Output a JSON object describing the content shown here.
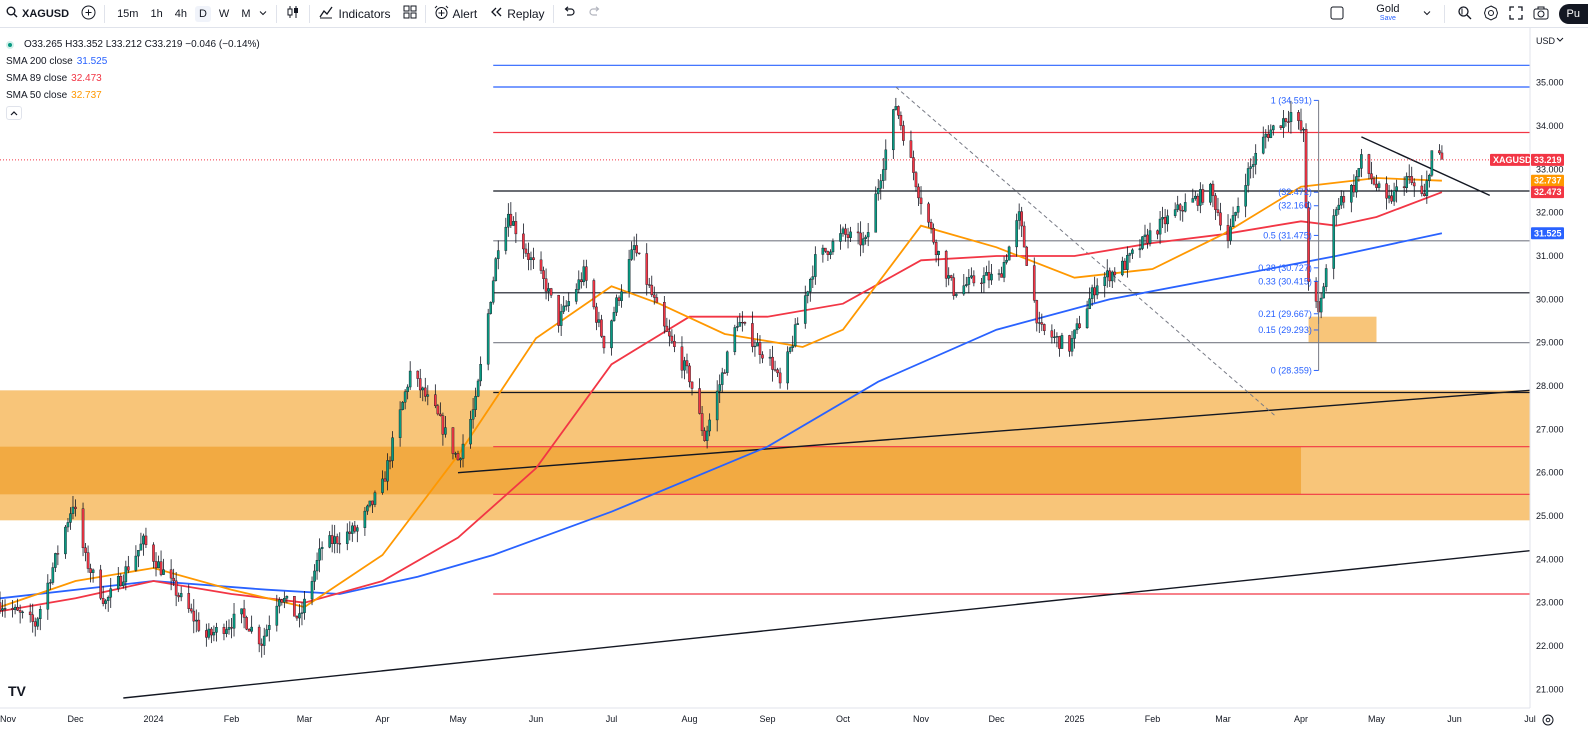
{
  "toolbar": {
    "symbol": "XAGUSD",
    "intervals": [
      "15m",
      "1h",
      "4h",
      "D",
      "W",
      "M"
    ],
    "active_interval": "D",
    "indicators_label": "Indicators",
    "alert_label": "Alert",
    "replay_label": "Replay",
    "layout_name": "Gold",
    "layout_status": "Save",
    "publish_label": "Pu"
  },
  "legend": {
    "ohlc": "O33.265  H33.352  L33.212  C33.219  −0.046 (−0.14%)",
    "ma": [
      {
        "label": "SMA 200 close",
        "value": "31.525",
        "color": "#2962ff"
      },
      {
        "label": "SMA 89 close",
        "value": "32.473",
        "color": "#f23645"
      },
      {
        "label": "SMA 50 close",
        "value": "32.737",
        "color": "#ff9800"
      }
    ],
    "collapse_icon": "chevron-up-icon"
  },
  "chart_data": {
    "type": "candlestick",
    "symbol": "XAGUSD",
    "interval": "D",
    "currency": "USD",
    "x_range": [
      "2023-11-01",
      "2025-07-01"
    ],
    "ylim": [
      20.8,
      35.8
    ],
    "y_ticks": [
      "35.000",
      "34.000",
      "33.000",
      "32.000",
      "31.000",
      "30.000",
      "29.000",
      "28.000",
      "27.000",
      "26.000",
      "25.000",
      "24.000",
      "23.000",
      "22.000",
      "21.000"
    ],
    "x_ticks": [
      {
        "label": "Nov",
        "date": "2023-11-01"
      },
      {
        "label": "Dec",
        "date": "2023-12-01"
      },
      {
        "label": "2024",
        "date": "2024-01-01"
      },
      {
        "label": "Feb",
        "date": "2024-02-01"
      },
      {
        "label": "Mar",
        "date": "2024-03-01"
      },
      {
        "label": "Apr",
        "date": "2024-04-01"
      },
      {
        "label": "May",
        "date": "2024-05-01"
      },
      {
        "label": "Jun",
        "date": "2024-06-01"
      },
      {
        "label": "Jul",
        "date": "2024-07-01"
      },
      {
        "label": "Aug",
        "date": "2024-08-01"
      },
      {
        "label": "Sep",
        "date": "2024-09-01"
      },
      {
        "label": "Oct",
        "date": "2024-10-01"
      },
      {
        "label": "Nov",
        "date": "2024-11-01"
      },
      {
        "label": "Dec",
        "date": "2024-12-01"
      },
      {
        "label": "2025",
        "date": "2025-01-01"
      },
      {
        "label": "Feb",
        "date": "2025-02-01"
      },
      {
        "label": "Mar",
        "date": "2025-03-01"
      },
      {
        "label": "Apr",
        "date": "2025-04-01"
      },
      {
        "label": "May",
        "date": "2025-05-01"
      },
      {
        "label": "Jun",
        "date": "2025-06-01"
      },
      {
        "label": "Jul",
        "date": "2025-07-01"
      }
    ],
    "price_anchors": [
      [
        "2023-11-01",
        23.0
      ],
      [
        "2023-11-15",
        22.5
      ],
      [
        "2023-11-30",
        25.3
      ],
      [
        "2023-12-05",
        24.0
      ],
      [
        "2023-12-13",
        23.0
      ],
      [
        "2023-12-28",
        24.4
      ],
      [
        "2024-01-22",
        22.2
      ],
      [
        "2024-02-05",
        22.7
      ],
      [
        "2024-02-13",
        22.1
      ],
      [
        "2024-02-20",
        23.2
      ],
      [
        "2024-02-28",
        22.6
      ],
      [
        "2024-03-08",
        24.3
      ],
      [
        "2024-03-22",
        24.7
      ],
      [
        "2024-04-01",
        25.7
      ],
      [
        "2024-04-12",
        28.3
      ],
      [
        "2024-04-22",
        27.4
      ],
      [
        "2024-05-01",
        26.3
      ],
      [
        "2024-05-08",
        27.6
      ],
      [
        "2024-05-17",
        31.3
      ],
      [
        "2024-05-21",
        32.0
      ],
      [
        "2024-05-29",
        31.0
      ],
      [
        "2024-06-05",
        30.3
      ],
      [
        "2024-06-10",
        29.5
      ],
      [
        "2024-06-20",
        30.6
      ],
      [
        "2024-06-28",
        29.0
      ],
      [
        "2024-07-10",
        31.2
      ],
      [
        "2024-07-22",
        29.3
      ],
      [
        "2024-08-01",
        28.2
      ],
      [
        "2024-08-07",
        26.8
      ],
      [
        "2024-08-20",
        29.5
      ],
      [
        "2024-09-03",
        28.5
      ],
      [
        "2024-09-06",
        28.0
      ],
      [
        "2024-09-20",
        30.9
      ],
      [
        "2024-10-01",
        31.5
      ],
      [
        "2024-10-10",
        31.3
      ],
      [
        "2024-10-22",
        34.5
      ],
      [
        "2024-10-31",
        32.5
      ],
      [
        "2024-11-07",
        31.2
      ],
      [
        "2024-11-14",
        30.2
      ],
      [
        "2024-11-25",
        30.5
      ],
      [
        "2024-12-02",
        30.5
      ],
      [
        "2024-12-10",
        31.9
      ],
      [
        "2024-12-18",
        29.3
      ],
      [
        "2024-12-30",
        28.9
      ],
      [
        "2025-01-10",
        30.4
      ],
      [
        "2025-01-21",
        30.8
      ],
      [
        "2025-01-31",
        31.5
      ],
      [
        "2025-02-12",
        32.1
      ],
      [
        "2025-02-24",
        32.5
      ],
      [
        "2025-03-03",
        31.4
      ],
      [
        "2025-03-10",
        32.8
      ],
      [
        "2025-03-18",
        33.8
      ],
      [
        "2025-03-28",
        34.3
      ],
      [
        "2025-04-02",
        33.8
      ],
      [
        "2025-04-04",
        30.5
      ],
      [
        "2025-04-08",
        29.6
      ],
      [
        "2025-04-15",
        32.2
      ],
      [
        "2025-04-22",
        32.6
      ],
      [
        "2025-04-25",
        33.2
      ],
      [
        "2025-05-05",
        32.2
      ],
      [
        "2025-05-13",
        32.8
      ],
      [
        "2025-05-20",
        32.3
      ],
      [
        "2025-05-23",
        33.4
      ],
      [
        "2025-05-27",
        33.2
      ]
    ],
    "series": [
      {
        "name": "SMA 200 close",
        "color": "#2962ff",
        "points": [
          [
            "2023-11-01",
            23.1
          ],
          [
            "2024-01-01",
            23.5
          ],
          [
            "2024-02-15",
            23.3
          ],
          [
            "2024-03-15",
            23.2
          ],
          [
            "2024-04-15",
            23.6
          ],
          [
            "2024-05-15",
            24.1
          ],
          [
            "2024-07-01",
            25.1
          ],
          [
            "2024-09-01",
            26.6
          ],
          [
            "2024-10-15",
            28.1
          ],
          [
            "2024-12-01",
            29.3
          ],
          [
            "2025-01-15",
            30.0
          ],
          [
            "2025-03-01",
            30.5
          ],
          [
            "2025-04-15",
            31.0
          ],
          [
            "2025-05-27",
            31.525
          ]
        ]
      },
      {
        "name": "SMA 89 close",
        "color": "#f23645",
        "points": [
          [
            "2023-11-01",
            22.8
          ],
          [
            "2023-12-01",
            23.1
          ],
          [
            "2024-01-01",
            23.5
          ],
          [
            "2024-02-01",
            23.2
          ],
          [
            "2024-03-01",
            23.0
          ],
          [
            "2024-04-01",
            23.5
          ],
          [
            "2024-05-01",
            24.5
          ],
          [
            "2024-06-01",
            26.1
          ],
          [
            "2024-07-01",
            28.5
          ],
          [
            "2024-08-01",
            29.6
          ],
          [
            "2024-09-01",
            29.6
          ],
          [
            "2024-10-01",
            29.9
          ],
          [
            "2024-11-01",
            30.9
          ],
          [
            "2024-12-01",
            31.0
          ],
          [
            "2025-01-01",
            31.0
          ],
          [
            "2025-02-01",
            31.3
          ],
          [
            "2025-03-01",
            31.5
          ],
          [
            "2025-04-01",
            31.8
          ],
          [
            "2025-04-15",
            31.7
          ],
          [
            "2025-05-01",
            31.9
          ],
          [
            "2025-05-27",
            32.473
          ]
        ]
      },
      {
        "name": "SMA 50 close",
        "color": "#ff9800",
        "points": [
          [
            "2023-11-01",
            22.9
          ],
          [
            "2023-12-01",
            23.5
          ],
          [
            "2024-01-01",
            23.8
          ],
          [
            "2024-02-01",
            23.3
          ],
          [
            "2024-03-01",
            22.9
          ],
          [
            "2024-04-01",
            24.1
          ],
          [
            "2024-05-01",
            26.4
          ],
          [
            "2024-06-01",
            29.1
          ],
          [
            "2024-07-01",
            30.3
          ],
          [
            "2024-07-20",
            29.9
          ],
          [
            "2024-08-15",
            29.2
          ],
          [
            "2024-09-15",
            28.9
          ],
          [
            "2024-10-01",
            29.3
          ],
          [
            "2024-11-01",
            31.7
          ],
          [
            "2024-12-01",
            31.2
          ],
          [
            "2025-01-01",
            30.5
          ],
          [
            "2025-02-01",
            30.7
          ],
          [
            "2025-03-01",
            31.5
          ],
          [
            "2025-04-01",
            32.6
          ],
          [
            "2025-05-01",
            32.8
          ],
          [
            "2025-05-27",
            32.737
          ]
        ]
      }
    ],
    "zones": [
      {
        "from": "2023-11-01",
        "to": "2025-07-01",
        "low": 24.9,
        "high": 27.9,
        "color": "#f5b14c"
      },
      {
        "from": "2023-11-01",
        "to": "2025-04-01",
        "low": 25.5,
        "high": 26.6,
        "color": "#f0a030"
      },
      {
        "from": "2025-04-04",
        "to": "2025-05-01",
        "low": 29.0,
        "high": 29.6,
        "color": "#f5b14c"
      }
    ],
    "hlines": [
      {
        "price": 35.4,
        "from": "2024-05-15",
        "to": "2025-07-01",
        "color": "#2962ff"
      },
      {
        "price": 34.9,
        "from": "2024-05-15",
        "to": "2025-07-01",
        "color": "#2962ff"
      },
      {
        "price": 33.85,
        "from": "2024-05-15",
        "to": "2025-07-01",
        "color": "#f23645"
      },
      {
        "price": 32.5,
        "from": "2024-05-15",
        "to": "2025-07-01",
        "color": "#131722"
      },
      {
        "price": 31.35,
        "from": "2024-05-15",
        "to": "2025-07-01",
        "color": "#787b86"
      },
      {
        "price": 30.15,
        "from": "2024-05-15",
        "to": "2025-07-01",
        "color": "#131722"
      },
      {
        "price": 29.0,
        "from": "2024-05-15",
        "to": "2025-07-01",
        "color": "#787b86"
      },
      {
        "price": 27.85,
        "from": "2024-05-15",
        "to": "2025-07-01",
        "color": "#131722"
      },
      {
        "price": 26.6,
        "from": "2024-05-15",
        "to": "2025-07-01",
        "color": "#f23645"
      },
      {
        "price": 25.5,
        "from": "2024-05-15",
        "to": "2025-07-01",
        "color": "#f23645"
      },
      {
        "price": 23.2,
        "from": "2024-05-15",
        "to": "2025-07-01",
        "color": "#f23645"
      }
    ],
    "trendlines": [
      {
        "from": [
          "2023-12-20",
          20.8
        ],
        "to": [
          "2025-07-01",
          24.2
        ],
        "color": "#131722"
      },
      {
        "from": [
          "2024-05-01",
          26.0
        ],
        "to": [
          "2025-07-01",
          27.9
        ],
        "color": "#131722"
      },
      {
        "from": [
          "2025-04-25",
          33.75
        ],
        "to": [
          "2025-06-15",
          32.4
        ],
        "color": "#131722"
      },
      {
        "from": [
          "2024-10-22",
          34.9
        ],
        "to": [
          "2025-03-22",
          27.3
        ],
        "color": "#787b86",
        "dashed": true
      }
    ],
    "fib_levels": [
      {
        "label": "1 (34.591)",
        "price": 34.591
      },
      {
        "label": "(32.472)",
        "price": 32.472
      },
      {
        "label": "(32.160)",
        "price": 32.16
      },
      {
        "label": "0.5 (31.475)",
        "price": 31.475
      },
      {
        "label": "0.38 (30.727)",
        "price": 30.727
      },
      {
        "label": "0.33 (30.415)",
        "price": 30.415
      },
      {
        "label": "0.21 (29.667)",
        "price": 29.667
      },
      {
        "label": "0.15 (29.293)",
        "price": 29.293
      },
      {
        "label": "0 (28.359)",
        "price": 28.359
      }
    ],
    "price_tags": [
      {
        "text": "33.219",
        "price": 33.219,
        "color": "#f23645",
        "name": "XAGUSD"
      },
      {
        "text": "32.737",
        "price": 32.737,
        "color": "#ff9800"
      },
      {
        "text": "32.473",
        "price": 32.473,
        "color": "#f23645"
      },
      {
        "text": "31.525",
        "price": 31.525,
        "color": "#2962ff"
      }
    ],
    "last_price": 33.219
  }
}
